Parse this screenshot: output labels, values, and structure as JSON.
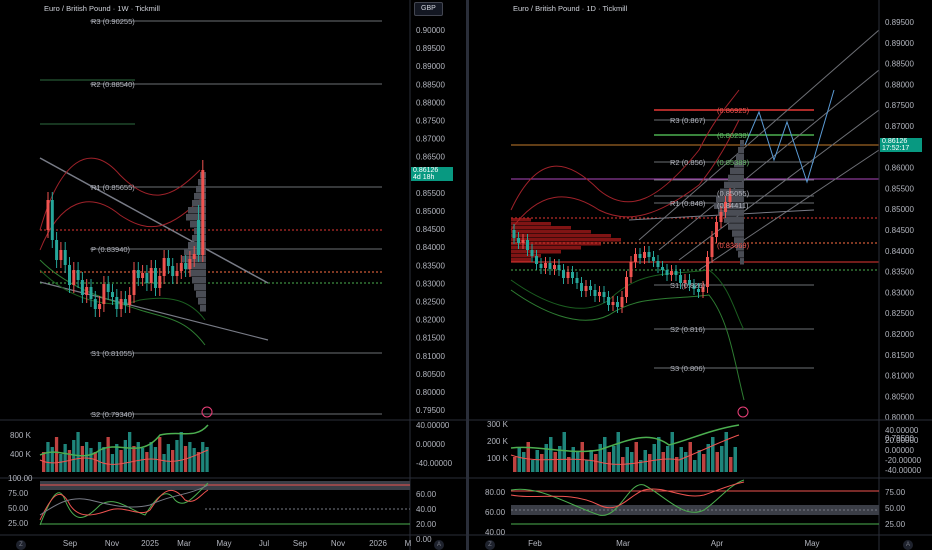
{
  "left": {
    "title": "Euro / British Pound · 1W · Tickmill",
    "currency_button": "GBP",
    "price_axis": [
      "0.90000",
      "0.89500",
      "0.89000",
      "0.88500",
      "0.88000",
      "0.87500",
      "0.87000",
      "0.86500",
      "0.86000",
      "0.85500",
      "0.85000",
      "0.84500",
      "0.84000",
      "0.83500",
      "0.83000",
      "0.82500",
      "0.82000",
      "0.81500",
      "0.81000",
      "0.80500",
      "0.80000",
      "0.79500"
    ],
    "levels": [
      "R3 (0.90255)",
      "R2 (0.88540)",
      "R1 (0.85655)",
      "P (0.83940)",
      "S1 (0.81055)",
      "S2 (0.79340)"
    ],
    "last_price": "0.86126",
    "countdown": "4d 18h",
    "volume_axis": [
      "800 K",
      "400 K"
    ],
    "indicator_axis": [
      "40.00000",
      "0.00000",
      "-40.00000"
    ],
    "osc_left_axis": [
      "100.00",
      "75.00",
      "50.00",
      "25.00"
    ],
    "osc_right_axis": [
      "60.00",
      "40.00",
      "20.00",
      "0.00"
    ],
    "time_axis": [
      "Sep",
      "Nov",
      "2025",
      "Mar",
      "May",
      "Jul",
      "Sep",
      "Nov",
      "2026",
      "M"
    ]
  },
  "right": {
    "title": "Euro / British Pound · 1D · Tickmill",
    "price_axis": [
      "0.89500",
      "0.89000",
      "0.88500",
      "0.88000",
      "0.87500",
      "0.87000",
      "0.86500",
      "0.86000",
      "0.85500",
      "0.85000",
      "0.84500",
      "0.84000",
      "0.83500",
      "0.83000",
      "0.82500",
      "0.82000",
      "0.81500",
      "0.81000",
      "0.80500",
      "0.80000",
      "0.79500"
    ],
    "top_axis": "0.89500",
    "levels": [
      "(0.86925)",
      "R3 (0.867)",
      "(0.86238)",
      "R2 (0.856)",
      "(0.85389)",
      "(0.85055)",
      "R1 (0.848)",
      "(0.84411)",
      "(0.83669)",
      "S1 (0.826)",
      "S2 (0.816)",
      "S3 (0.806)"
    ],
    "last_price": "0.86126",
    "countdown": "17:52:17",
    "volume_axis": [
      "300 K",
      "200 K",
      "100 K"
    ],
    "indicator_axis": [
      "40.00000",
      "20.00000",
      "0.00000",
      "-20.00000",
      "-40.00000"
    ],
    "osc_left_axis": [
      "80.00",
      "60.00",
      "40.00"
    ],
    "osc_right_axis": [
      "75.00",
      "50.00",
      "25.00"
    ],
    "time_axis": [
      "Feb",
      "Mar",
      "Apr",
      "May"
    ]
  },
  "colors": {
    "bull": "#26a69a",
    "bear": "#ef5350",
    "panel": "#000000",
    "grid": "#1e222d"
  }
}
